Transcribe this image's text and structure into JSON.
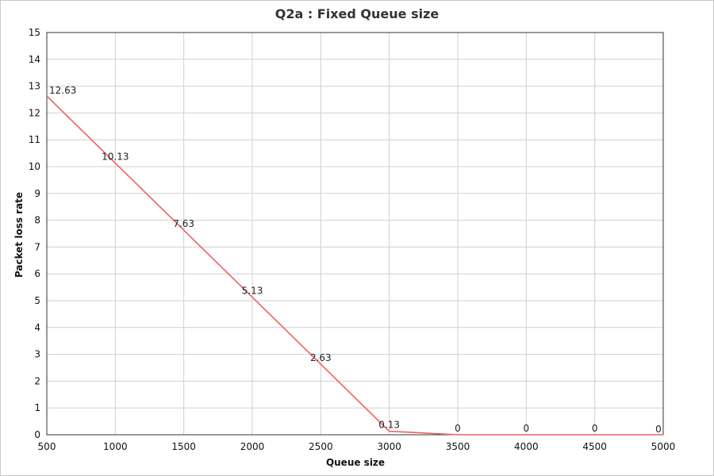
{
  "chart_data": {
    "type": "line",
    "title": "Q2a : Fixed Queue size",
    "xlabel": "Queue size",
    "ylabel": "Packet loss rate",
    "xlim": [
      500,
      5000
    ],
    "ylim": [
      0,
      15
    ],
    "x_ticks": [
      "500",
      "1000",
      "1500",
      "2000",
      "2500",
      "3000",
      "3500",
      "4000",
      "4500",
      "5000"
    ],
    "y_ticks": [
      "0",
      "1",
      "2",
      "3",
      "4",
      "5",
      "6",
      "7",
      "8",
      "9",
      "10",
      "11",
      "12",
      "13",
      "14",
      "15"
    ],
    "grid": true,
    "line_color": "#f06060",
    "series": [
      {
        "x": [
          500,
          1000,
          1500,
          2000,
          2500,
          3000,
          3500,
          4000,
          4500,
          5000
        ],
        "values": [
          12.63,
          10.13,
          7.63,
          5.13,
          2.63,
          0.13,
          0,
          0,
          0,
          0
        ],
        "labels": [
          "12.63",
          "10.13",
          "7.63",
          "5.13",
          "2.63",
          "0.13",
          "0",
          "0",
          "0",
          "0"
        ]
      }
    ]
  }
}
